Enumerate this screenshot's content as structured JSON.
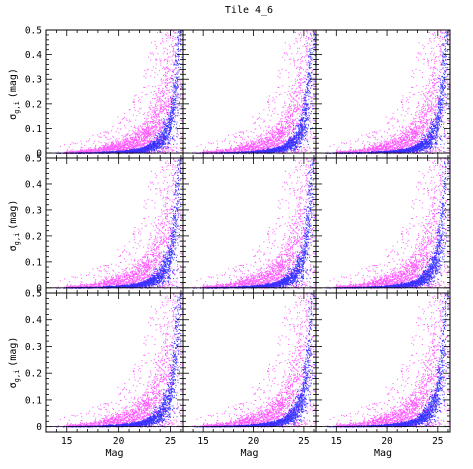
{
  "chart_data": {
    "type": "scatter",
    "title": "Tile 4_6",
    "layout": "3x3 grid of panels sharing axes",
    "xlabel": "Mag",
    "ylabel": "σ_g,i (mag)",
    "ylabel_parts": {
      "symbol": "σ",
      "subscript": "g,i",
      "unit": "(mag)"
    },
    "xlim": [
      13,
      26.2
    ],
    "ylim": [
      -0.02,
      0.5
    ],
    "xticks": [
      15,
      20,
      25
    ],
    "yticks": [
      0,
      0.1,
      0.2,
      0.3,
      0.4,
      0.5
    ],
    "ytick_labels": [
      "0",
      "0.1",
      "0.2",
      "0.3",
      "0.4",
      "0.5"
    ],
    "grid": false,
    "legend": "none",
    "colors": {
      "series_a": "#ff22ff",
      "series_b": "#1a1aff",
      "frame": "#000000"
    },
    "series": [
      {
        "color": "#ff22ff",
        "description_points": [
          [
            14,
            0.003
          ],
          [
            17,
            0.008
          ],
          [
            19,
            0.018
          ],
          [
            20,
            0.025
          ],
          [
            21,
            0.035
          ],
          [
            22,
            0.05
          ],
          [
            23,
            0.08
          ],
          [
            24,
            0.14
          ],
          [
            24.5,
            0.22
          ],
          [
            25,
            0.34
          ],
          [
            25.4,
            0.5
          ]
        ],
        "scatter_spread": 0.6
      },
      {
        "color": "#1a1aff",
        "description_points": [
          [
            14,
            0.001
          ],
          [
            18,
            0.003
          ],
          [
            20,
            0.006
          ],
          [
            22,
            0.012
          ],
          [
            23,
            0.022
          ],
          [
            24,
            0.05
          ],
          [
            24.8,
            0.1
          ],
          [
            25.3,
            0.2
          ],
          [
            25.6,
            0.35
          ],
          [
            25.8,
            0.5
          ]
        ],
        "scatter_spread": 0.35
      }
    ]
  }
}
